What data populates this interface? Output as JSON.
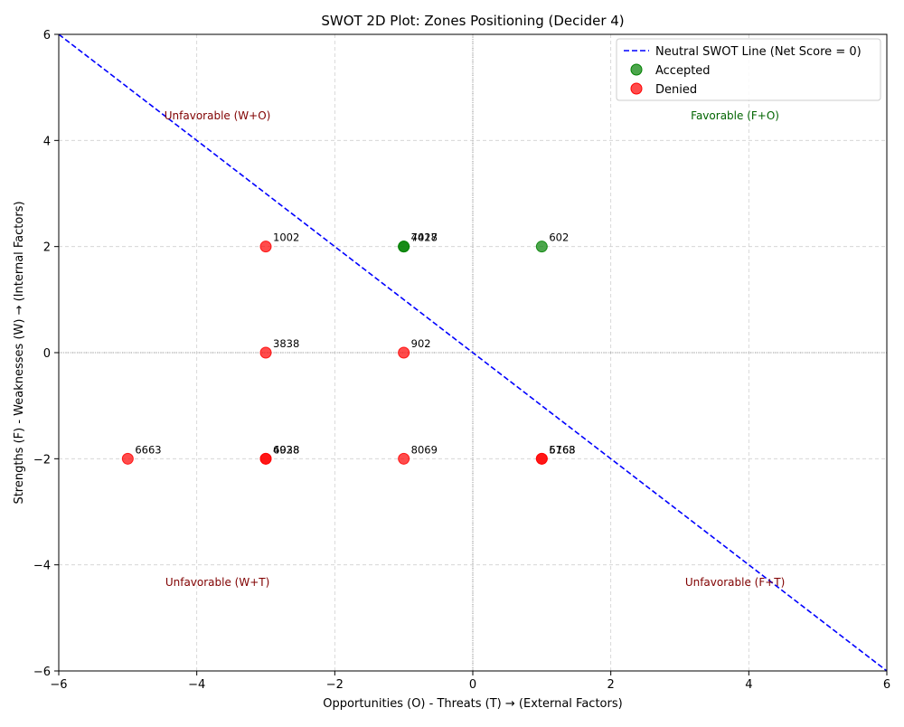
{
  "chart_data": {
    "type": "scatter",
    "title": "SWOT 2D Plot: Zones Positioning (Decider 4)",
    "xlabel": "Opportunities (O) - Threats (T) → (External Factors)",
    "ylabel": "Strengths (F) - Weaknesses (W) → (Internal Factors)",
    "xlim": [
      -6,
      6
    ],
    "ylim": [
      -6,
      6
    ],
    "x_ticks": [
      "−6",
      "−4",
      "−2",
      "0",
      "2",
      "4",
      "6"
    ],
    "y_ticks": [
      "−6",
      "−4",
      "−2",
      "0",
      "2",
      "4",
      "6"
    ],
    "grid": true,
    "legend_position": "top-right",
    "neutral_line": {
      "name": "Neutral SWOT Line (Net Score = 0)",
      "color": "#0000ff",
      "points": [
        [
          -6,
          6
        ],
        [
          6,
          -6
        ]
      ]
    },
    "series": [
      {
        "name": "Accepted",
        "color": "#008000",
        "points": [
          {
            "x": -1,
            "y": 2,
            "label": "7017"
          },
          {
            "x": -1,
            "y": 2,
            "label": "4428"
          },
          {
            "x": 1,
            "y": 2,
            "label": "602"
          }
        ]
      },
      {
        "name": "Denied",
        "color": "#ff0000",
        "points": [
          {
            "x": -3,
            "y": 2,
            "label": "1002"
          },
          {
            "x": -3,
            "y": 0,
            "label": "3838"
          },
          {
            "x": -1,
            "y": 0,
            "label": "902"
          },
          {
            "x": -5,
            "y": -2,
            "label": "6663"
          },
          {
            "x": -3,
            "y": -2,
            "label": "6938"
          },
          {
            "x": -3,
            "y": -2,
            "label": "4028"
          },
          {
            "x": -1,
            "y": -2,
            "label": "8069"
          },
          {
            "x": 1,
            "y": -2,
            "label": "6763"
          },
          {
            "x": 1,
            "y": -2,
            "label": "5168"
          }
        ]
      }
    ],
    "zone_labels": [
      {
        "text": "Unfavorable (W+O)",
        "x": -3.7,
        "y": 4.4,
        "color": "#800000"
      },
      {
        "text": "Favorable (F+O)",
        "x": 3.8,
        "y": 4.4,
        "color": "#006400"
      },
      {
        "text": "Unfavorable (W+T)",
        "x": -3.7,
        "y": -4.4,
        "color": "#800000"
      },
      {
        "text": "Unfavorable (F+T)",
        "x": 3.8,
        "y": -4.4,
        "color": "#800000"
      }
    ]
  }
}
